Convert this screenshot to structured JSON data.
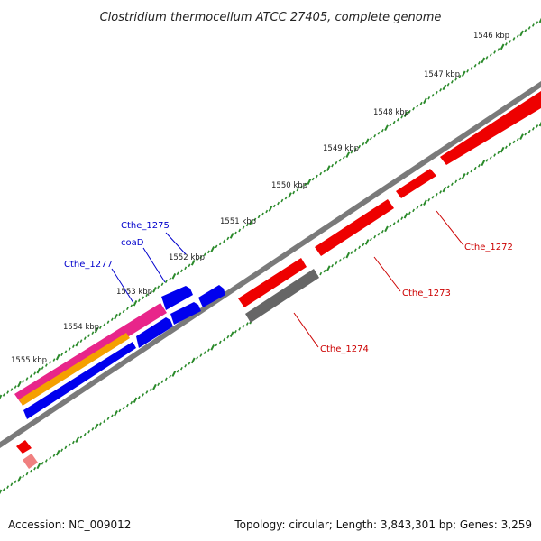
{
  "title": "Clostridium thermocellum ATCC 27405, complete genome",
  "ticks": [
    "1546 kbp",
    "1547 kbp",
    "1548 kbp",
    "1549 kbp",
    "1550 kbp",
    "1551 kbp",
    "1552 kbp",
    "1553 kbp",
    "1554 kbp",
    "1555 kbp"
  ],
  "gene_labels": [
    {
      "text": "Cthe_1275",
      "color": "#0000cc"
    },
    {
      "text": "coaD",
      "color": "#0000cc"
    },
    {
      "text": "Cthe_1277",
      "color": "#0000cc"
    },
    {
      "text": "Cthe_1272",
      "color": "#cc0000"
    },
    {
      "text": "Cthe_1273",
      "color": "#cc0000"
    },
    {
      "text": "Cthe_1274",
      "color": "#cc0000"
    }
  ],
  "colors": {
    "backbone": "#7a7a7a",
    "forward_gene": "#0000ee",
    "reverse_gene": "#ee0000",
    "pseudo_gene": "#666666",
    "magenta_feature": "#e8258a",
    "orange_feature": "#f5a000",
    "tick": "#2a8a2a"
  },
  "footer": {
    "accession": "Accession: NC_009012",
    "summary": "Topology: circular; Length: 3,843,301 bp; Genes: 3,259"
  }
}
